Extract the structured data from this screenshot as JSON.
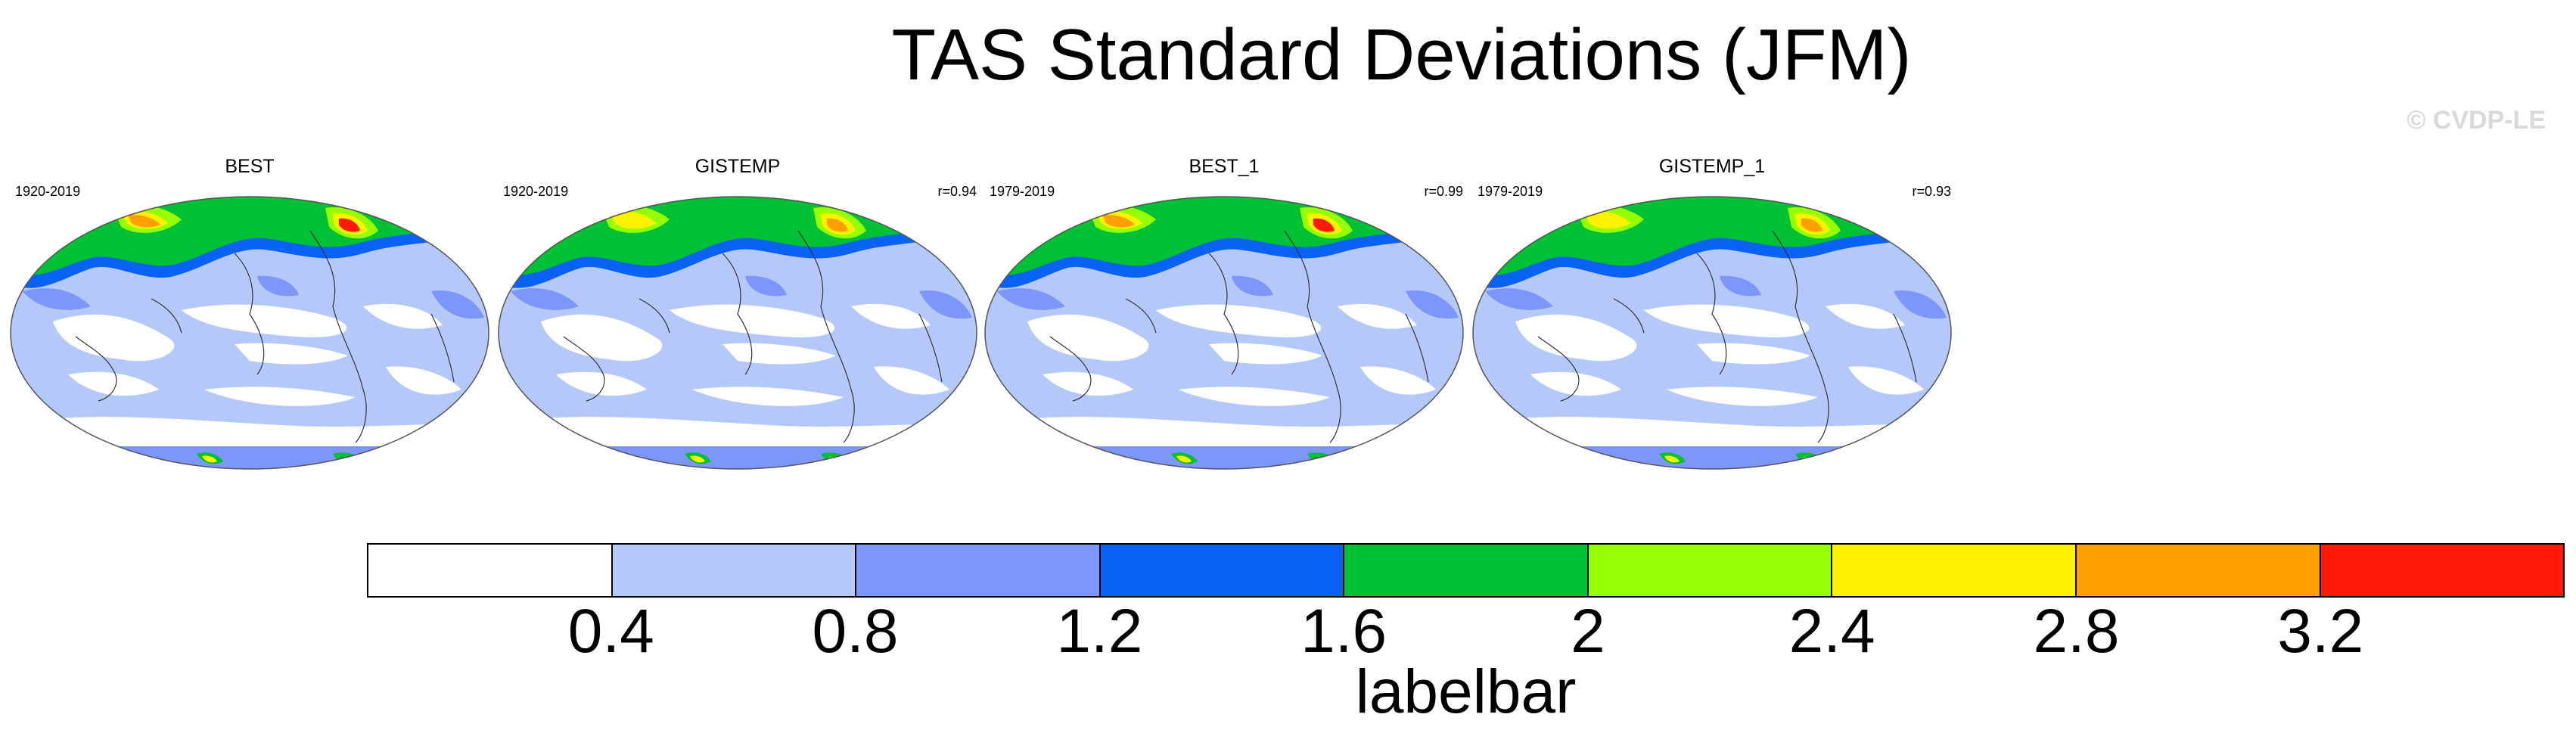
{
  "title": "TAS Standard Deviations (JFM)",
  "credit": "© CVDP-LE",
  "panels": [
    {
      "name": "BEST",
      "period": "1920-2019",
      "corr": ""
    },
    {
      "name": "GISTEMP",
      "period": "1920-2019",
      "corr": "r=0.94"
    },
    {
      "name": "BEST_1",
      "period": "1979-2019",
      "corr": "r=0.99"
    },
    {
      "name": "GISTEMP_1",
      "period": "1979-2019",
      "corr": "r=0.93"
    }
  ],
  "labelbar": {
    "title": "labelbar",
    "ticks": [
      "0.4",
      "0.8",
      "1.2",
      "1.6",
      "2",
      "2.4",
      "2.8",
      "3.2"
    ],
    "colors": [
      "#ffffff",
      "#b4c8fa",
      "#7c96fa",
      "#0a62f5",
      "#00c036",
      "#96ff00",
      "#fff200",
      "#ffa000",
      "#ff1a0a"
    ]
  },
  "map_colors": {
    "land_outline": "#333333",
    "ocean_low": "#ffffff",
    "level1": "#b4c8fa",
    "level2": "#7c96fa",
    "level3": "#0a62f5",
    "level4": "#00c036",
    "level5": "#96ff00",
    "level6": "#fff200",
    "level7": "#ffa000",
    "level8": "#ff1a0a"
  }
}
